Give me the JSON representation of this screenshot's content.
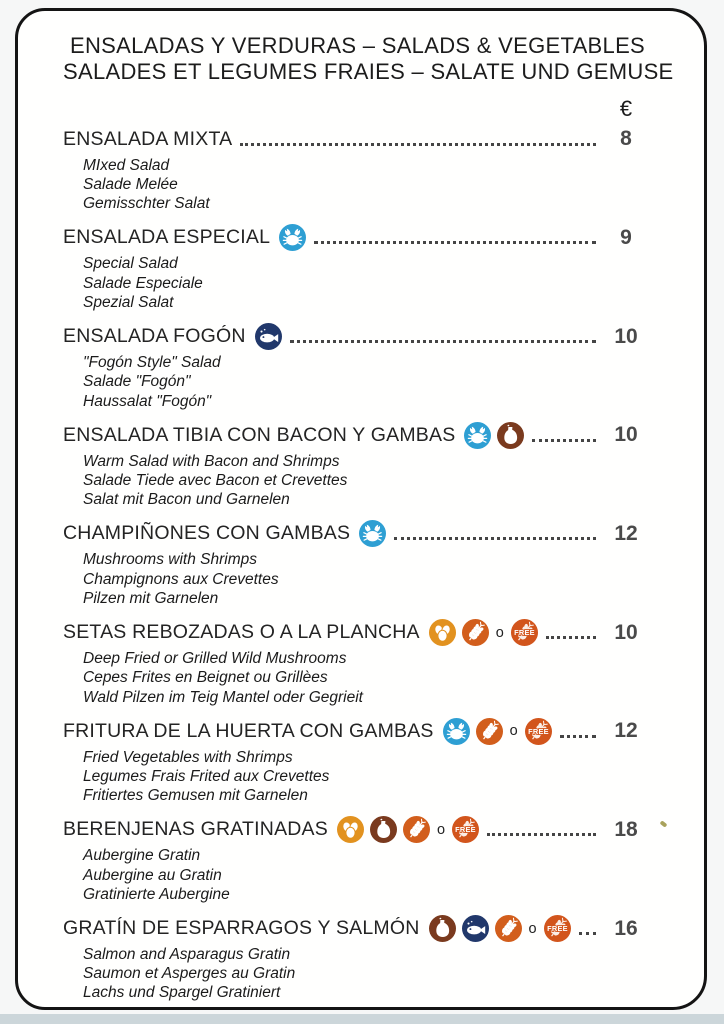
{
  "page": {
    "header": {
      "title_line1": "ENSALADAS Y VERDURAS – SALADS & VEGETABLES",
      "title_line2": "SALADES ET LEGUMES FRAIES – SALATE UND GEMUSE",
      "currency_symbol": "€"
    },
    "or_separator": "o",
    "gluten_free_label": "FREE",
    "allergen_icon_colors": {
      "crustacean": "#2E9FD3",
      "fish": "#21386B",
      "milk": "#7A3A1E",
      "egg": "#E2921F",
      "gluten": "#D25E1C",
      "gluten_free": "#D2551C"
    },
    "items": [
      {
        "name": "ENSALADA MIXTA",
        "icons": [],
        "price": "8",
        "translations": [
          "MIxed Salad",
          "Salade Melée",
          "Gemisschter Salat"
        ]
      },
      {
        "name": "ENSALADA ESPECIAL",
        "icons": [
          "crustacean"
        ],
        "price": "9",
        "translations": [
          "Special Salad",
          "Salade Especiale",
          "Spezial Salat"
        ]
      },
      {
        "name": "ENSALADA FOGÓN",
        "icons": [
          "fish"
        ],
        "price": "10",
        "translations": [
          "\"Fogón Style\" Salad",
          "Salade \"Fogón\"",
          "Haussalat \"Fogón\""
        ]
      },
      {
        "name": "ENSALADA TIBIA CON BACON Y GAMBAS",
        "icons": [
          "crustacean",
          "milk"
        ],
        "price": "10",
        "translations": [
          "Warm Salad with Bacon and Shrimps",
          "Salade Tiede avec Bacon et Crevettes",
          "Salat mit Bacon und Garnelen"
        ]
      },
      {
        "name": "CHAMPIÑONES CON GAMBAS",
        "icons": [
          "crustacean"
        ],
        "price": "12",
        "translations": [
          "Mushrooms with Shrimps",
          "Champignons aux Crevettes",
          "Pilzen mit Garnelen"
        ]
      },
      {
        "name": "SETAS REBOZADAS O A LA PLANCHA",
        "icons": [
          "egg",
          "gluten",
          "or",
          "gluten_free"
        ],
        "price": "10",
        "translations": [
          "Deep Fried or Grilled Wild Mushrooms",
          "Cepes Frites en Beignet ou Grillèes",
          "Wald Pilzen im Teig Mantel oder Gegrieit"
        ]
      },
      {
        "name": "FRITURA DE LA HUERTA CON GAMBAS",
        "icons": [
          "crustacean",
          "gluten",
          "or",
          "gluten_free"
        ],
        "price": "12",
        "translations": [
          "Fried Vegetables with Shrimps",
          "Legumes Frais Frited aux Crevettes",
          "Fritiertes Gemusen mit Garnelen"
        ]
      },
      {
        "name": "BERENJENAS GRATINADAS",
        "icons": [
          "egg",
          "milk",
          "gluten",
          "or",
          "gluten_free"
        ],
        "price": "18",
        "translations": [
          "Aubergine Gratin",
          "Aubergine au Gratin",
          "Gratinierte Aubergine"
        ]
      },
      {
        "name": "GRATÍN DE ESPARRAGOS Y SALMÓN",
        "icons": [
          "milk",
          "fish",
          "gluten",
          "or",
          "gluten_free"
        ],
        "price": "16",
        "translations": [
          "Salmon and Asparagus Gratin",
          "Saumon et Asperges au Gratin",
          "Lachs und Spargel Gratiniert"
        ]
      }
    ]
  }
}
